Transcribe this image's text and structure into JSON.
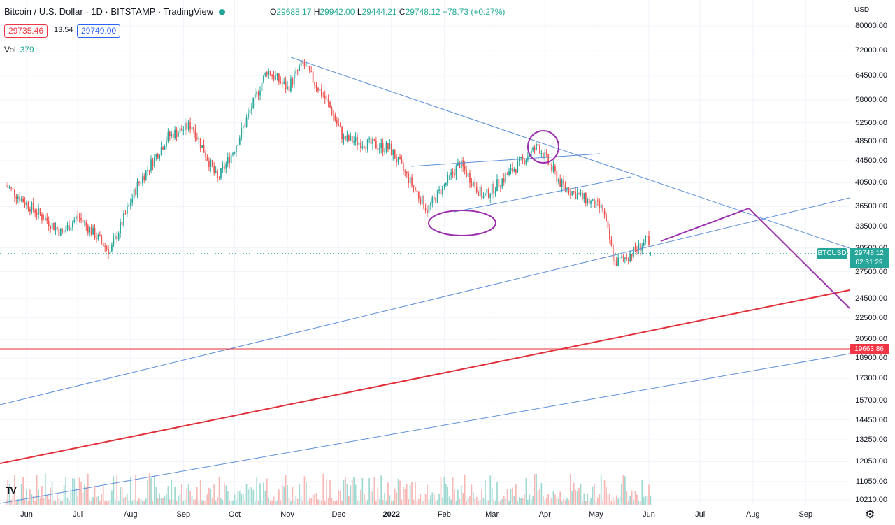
{
  "header": {
    "symbol_title": "Bitcoin / U.S. Dollar · 1D · BITSTAMP · TradingView",
    "open_label": "O",
    "open": "29688.17",
    "high_label": "H",
    "high": "29942.00",
    "low_label": "L",
    "low": "29444.21",
    "close_label": "C",
    "close": "29748.12",
    "change": "+78.73 (+0.27%)",
    "bid": "29735.46",
    "spread": "13.54",
    "ask": "29749.00",
    "volume_label": "Vol",
    "volume": "379"
  },
  "price_axis": {
    "currency": "USD",
    "symbol_tag": "BTCUSD",
    "last_price": "29748.12",
    "countdown": "02:31:29",
    "line_price": "19663.86"
  },
  "chart_data": {
    "type": "candlestick",
    "title": "Bitcoin / U.S. Dollar · 1D · BITSTAMP",
    "y_scale": "log",
    "ylim": [
      10000,
      88000
    ],
    "y_ticks": [
      "80000.00",
      "72000.00",
      "64500.00",
      "58000.00",
      "52500.00",
      "48500.00",
      "44500.00",
      "40500.00",
      "36500.00",
      "33500.00",
      "30500.00",
      "27500.00",
      "24500.00",
      "22500.00",
      "20500.00",
      "18900.00",
      "17300.00",
      "15700.00",
      "14450.00",
      "13250.00",
      "12050.00",
      "11050.00",
      "10210.00"
    ],
    "x_ticks": [
      "Jun",
      "Jul",
      "Aug",
      "Sep",
      "Oct",
      "Nov",
      "Dec",
      "2022",
      "Feb",
      "Mar",
      "Apr",
      "May",
      "Jun",
      "Jul",
      "Aug",
      "Sep"
    ],
    "x_ticks_bold": [
      "2022"
    ],
    "price_path": [
      {
        "date": "2021-05-20",
        "close": 40000
      },
      {
        "date": "2021-06-01",
        "close": 37000
      },
      {
        "date": "2021-06-22",
        "close": 32500
      },
      {
        "date": "2021-07-01",
        "close": 35000
      },
      {
        "date": "2021-07-20",
        "close": 30000
      },
      {
        "date": "2021-08-05",
        "close": 40000
      },
      {
        "date": "2021-08-23",
        "close": 49500
      },
      {
        "date": "2021-09-06",
        "close": 52000
      },
      {
        "date": "2021-09-21",
        "close": 41000
      },
      {
        "date": "2021-10-01",
        "close": 47000
      },
      {
        "date": "2021-10-20",
        "close": 66000
      },
      {
        "date": "2021-11-01",
        "close": 61000
      },
      {
        "date": "2021-11-10",
        "close": 68000
      },
      {
        "date": "2021-11-25",
        "close": 57000
      },
      {
        "date": "2021-12-04",
        "close": 49000
      },
      {
        "date": "2021-12-31",
        "close": 47000
      },
      {
        "date": "2022-01-22",
        "close": 36000
      },
      {
        "date": "2022-02-10",
        "close": 44000
      },
      {
        "date": "2022-02-24",
        "close": 38000
      },
      {
        "date": "2022-03-28",
        "close": 47500
      },
      {
        "date": "2022-04-11",
        "close": 40000
      },
      {
        "date": "2022-05-05",
        "close": 36000
      },
      {
        "date": "2022-05-12",
        "close": 28500
      },
      {
        "date": "2022-05-20",
        "close": 29500
      },
      {
        "date": "2022-05-31",
        "close": 31500
      },
      {
        "date": "2022-06-02",
        "close": 29748.12
      }
    ],
    "drawings": [
      {
        "name": "upper-trendline",
        "color": "#5b8fd9"
      },
      {
        "name": "channel-top",
        "color": "#5b8fd9"
      },
      {
        "name": "channel-bottom",
        "color": "#5b8fd9"
      },
      {
        "name": "long-support-upper",
        "color": "#5b8fd9"
      },
      {
        "name": "long-support-lower",
        "color": "#5b8fd9"
      },
      {
        "name": "red-trendline",
        "color": "#e0303a"
      },
      {
        "name": "horizontal-level",
        "color": "#e0303a",
        "price": 19663.86
      },
      {
        "name": "projection-path",
        "color": "#9b2fae"
      },
      {
        "name": "circle-top",
        "color": "#9b2fae"
      },
      {
        "name": "ellipse-bottom",
        "color": "#9b2fae"
      }
    ],
    "colors": {
      "up": "#26a69a",
      "down": "#ef5350",
      "vol_up": "#9fd9d2",
      "vol_down": "#f7b7b5"
    }
  }
}
